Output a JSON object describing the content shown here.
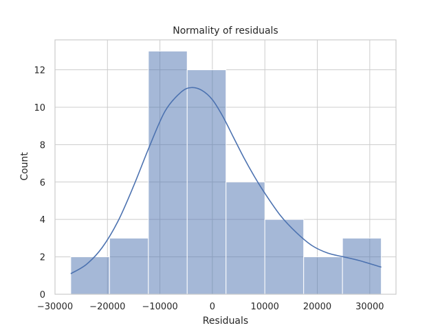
{
  "chart_data": {
    "type": "histogram",
    "title": "Normality of residuals",
    "xlabel": "Residuals",
    "ylabel": "Count",
    "xlim": [
      -30000,
      35000
    ],
    "ylim": [
      0,
      13.6
    ],
    "grid": true,
    "bar_color": "#4c72b0",
    "x_ticks": [
      -30000,
      -20000,
      -10000,
      0,
      10000,
      20000,
      30000
    ],
    "x_tick_labels": [
      "−30000",
      "−20000",
      "−10000",
      "0",
      "10000",
      "20000",
      "30000"
    ],
    "y_ticks": [
      0,
      2,
      4,
      6,
      8,
      10,
      12
    ],
    "y_tick_labels": [
      "0",
      "2",
      "4",
      "6",
      "8",
      "10",
      "12"
    ],
    "bins": [
      {
        "start": -27000,
        "end": -19600,
        "count": 2
      },
      {
        "start": -19600,
        "end": -12200,
        "count": 3
      },
      {
        "start": -12200,
        "end": -4800,
        "count": 13
      },
      {
        "start": -4800,
        "end": 2600,
        "count": 12
      },
      {
        "start": 2600,
        "end": 10000,
        "count": 6
      },
      {
        "start": 10000,
        "end": 17400,
        "count": 4
      },
      {
        "start": 17400,
        "end": 24800,
        "count": 2
      },
      {
        "start": 24800,
        "end": 32200,
        "count": 3
      }
    ],
    "kde": {
      "x": [
        -27000,
        -24000,
        -21000,
        -18000,
        -15000,
        -12000,
        -9000,
        -6000,
        -4000,
        -2000,
        0,
        2000,
        4000,
        6000,
        8000,
        10000,
        13000,
        16000,
        19000,
        22000,
        25000,
        28000,
        32200
      ],
      "y": [
        1.1,
        1.6,
        2.5,
        3.9,
        5.8,
        7.9,
        9.8,
        10.8,
        11.05,
        10.9,
        10.4,
        9.5,
        8.4,
        7.3,
        6.3,
        5.4,
        4.2,
        3.3,
        2.6,
        2.2,
        2.0,
        1.8,
        1.45
      ]
    }
  }
}
